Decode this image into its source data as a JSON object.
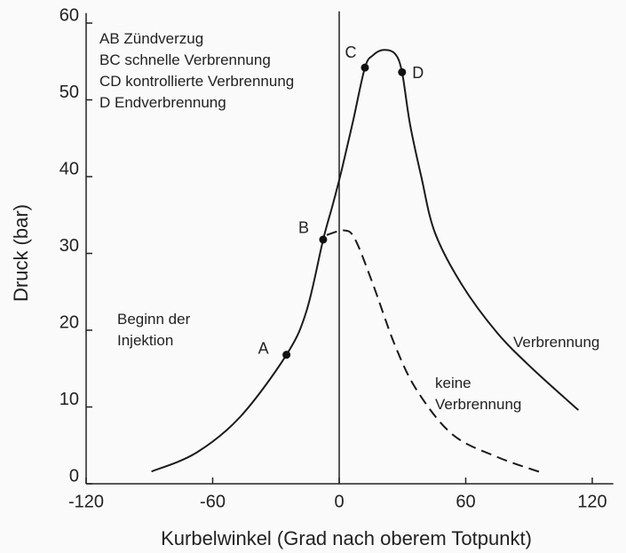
{
  "chart_data": {
    "type": "line",
    "xlabel": "Kurbelwinkel (Grad nach oberem Totpunkt)",
    "ylabel": "Druck (bar)",
    "xlim": [
      -120,
      130
    ],
    "xticks": [
      -120,
      -60,
      0,
      60,
      120
    ],
    "ylim": [
      0,
      62
    ],
    "yticks": [
      0,
      10,
      20,
      30,
      40,
      50,
      60
    ],
    "vline": 0,
    "series": [
      {
        "name": "Verbrennung",
        "color": "#1a1a1a",
        "dash": false,
        "x": [
          -89,
          -68,
          -47,
          -25,
          -15.5,
          -7.6,
          -3,
          1.3,
          6.7,
          12.2,
          16,
          21,
          26.5,
          29.8,
          33.6,
          39,
          45.4,
          58,
          74.8,
          91.6,
          113.4
        ],
        "values": [
          1.6,
          4,
          8.7,
          16.8,
          22.5,
          31.8,
          36.4,
          41,
          47.4,
          54.2,
          55.8,
          56.5,
          56,
          53.6,
          46.8,
          39.9,
          32.7,
          26,
          19.7,
          15,
          9.6
        ]
      },
      {
        "name": "keine Verbrennung",
        "color": "#1a1a1a",
        "dash": true,
        "x": [
          -5.9,
          2.5,
          7.6,
          16,
          26.5,
          37,
          53.8,
          74.8,
          96.6
        ],
        "values": [
          32.4,
          33,
          31.8,
          26,
          18,
          12.1,
          6.4,
          3.5,
          1.4
        ]
      }
    ],
    "points": [
      {
        "label": "A",
        "x": -25,
        "y": 16.8
      },
      {
        "label": "B",
        "x": -7.6,
        "y": 31.8
      },
      {
        "label": "C",
        "x": 12.2,
        "y": 54.2
      },
      {
        "label": "D",
        "x": 29.8,
        "y": 53.6
      }
    ],
    "notes": [
      "AB Zündverzug",
      "BC schnelle Verbrennung",
      "CD kontrollierte Verbrennung",
      "D Endverbrennung"
    ],
    "annotation": "Beginn der Injektion"
  }
}
